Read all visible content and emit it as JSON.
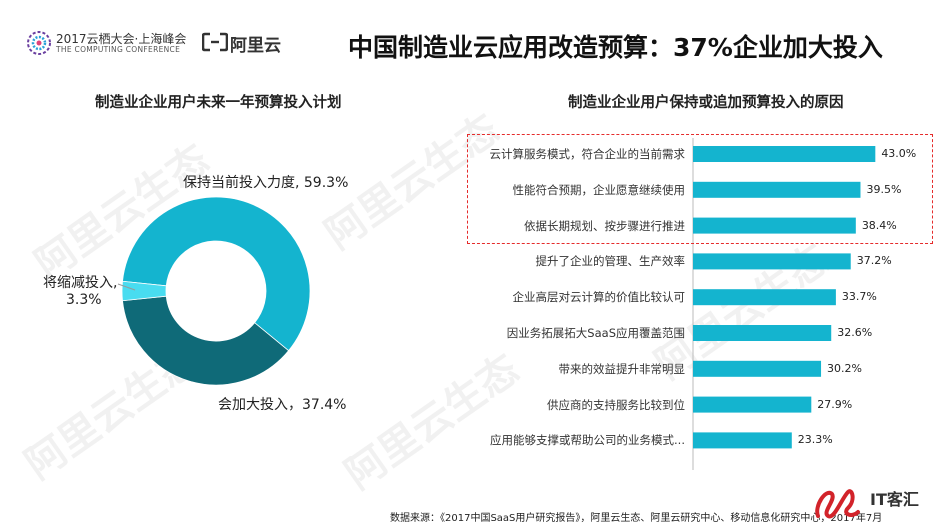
{
  "header": {
    "conf_line1": "2017云栖大会·上海峰会",
    "conf_line2": "THE COMPUTING CONFERENCE",
    "ali_name": "阿里云",
    "title": "中国制造业云应用改造预算：37%企业加大投入"
  },
  "watermark_text": "阿里云生态",
  "chart_data": [
    {
      "type": "pie",
      "title": "制造业企业用户未来一年预算投入计划",
      "labels": [
        "保持当前投入力度, 59.3%",
        "会加大投入，37.4%",
        "将缩减投入,",
        "3.3%"
      ],
      "slices": [
        {
          "name": "保持当前投入力度",
          "value": 59.3,
          "color": "#14b4cf"
        },
        {
          "name": "会加大投入",
          "value": 37.4,
          "color": "#0f6a78"
        },
        {
          "name": "将缩减投入",
          "value": 3.3,
          "color": "#49dcf0"
        }
      ],
      "donut": true
    },
    {
      "type": "bar",
      "orientation": "horizontal",
      "title": "制造业企业用户保持或追加预算投入的原因",
      "color": "#14b4cf",
      "categories": [
        "云计算服务模式，符合企业的当前需求",
        "性能符合预期，企业愿意继续使用",
        "依据长期规划、按步骤进行推进",
        "提升了企业的管理、生产效率",
        "企业高层对云计算的价值比较认可",
        "因业务拓展拓大SaaS应用覆盖范围",
        "带来的效益提升非常明显",
        "供应商的支持服务比较到位",
        "应用能够支撑或帮助公司的业务模式..."
      ],
      "values": [
        43.0,
        39.5,
        38.4,
        37.2,
        33.7,
        32.6,
        30.2,
        27.9,
        23.3
      ],
      "value_labels": [
        "43.0%",
        "39.5%",
        "38.4%",
        "37.2%",
        "33.7%",
        "32.6%",
        "30.2%",
        "27.9%",
        "23.3%"
      ],
      "highlighted_count": 3,
      "highlight_color": "#e52b2b"
    }
  ],
  "footer": {
    "source": "数据来源：《2017中国SaaS用户研究报告》，阿里云生态、阿里云研究中心、移动信息化研究中心，2017年7月",
    "brand": "IT客汇"
  }
}
